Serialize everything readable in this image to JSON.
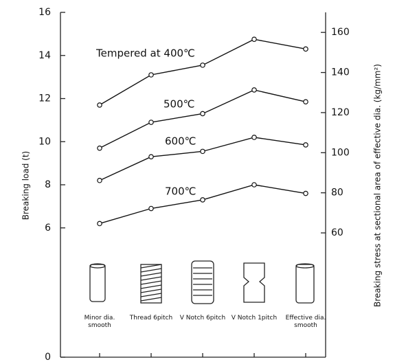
{
  "chart_data": {
    "type": "line",
    "ylabel": "Breaking load (t)",
    "y2label": "Breaking stress at sectional area of effective dia. (kg/mm²)",
    "categories": [
      "Minor dia. smooth",
      "Thread 6pitch",
      "V Notch 6pitch",
      "V Notch 1pitch",
      "Effective dia. smooth"
    ],
    "series": [
      {
        "name": "Tempered at 400℃",
        "color": "#111111",
        "values": [
          11.7,
          13.1,
          13.55,
          14.75,
          14.3
        ]
      },
      {
        "name": "500℃",
        "color": "#111111",
        "values": [
          9.7,
          10.9,
          11.3,
          12.4,
          11.85
        ]
      },
      {
        "name": "600℃",
        "color": "#111111",
        "values": [
          8.2,
          9.3,
          9.55,
          10.2,
          9.85
        ]
      },
      {
        "name": "700℃",
        "color": "#111111",
        "values": [
          6.2,
          6.9,
          7.3,
          8.0,
          7.6
        ]
      }
    ],
    "ylim": [
      0,
      16
    ],
    "yticks": [
      0,
      6,
      8,
      10,
      12,
      14,
      16
    ],
    "y2lim": [
      -2,
      170
    ],
    "y2ticks": [
      60,
      80,
      100,
      120,
      140,
      160
    ]
  }
}
